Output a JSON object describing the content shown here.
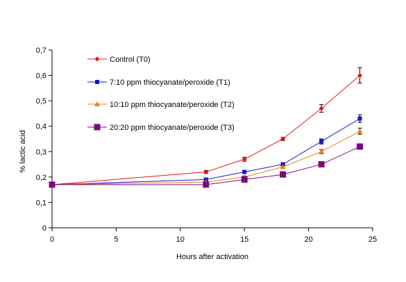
{
  "chart_data": {
    "type": "line",
    "title": "",
    "xlabel": "Hours after activation",
    "ylabel": "% lactic acid",
    "xlim": [
      0,
      25
    ],
    "ylim": [
      0,
      0.7
    ],
    "x_ticks": [
      0,
      5,
      10,
      15,
      20,
      25
    ],
    "x_tick_labels": [
      "0",
      "5",
      "10",
      "15",
      "20",
      "25"
    ],
    "y_ticks": [
      0,
      0.1,
      0.2,
      0.3,
      0.4,
      0.5,
      0.6,
      0.7
    ],
    "y_tick_labels": [
      "0",
      "0,1",
      "0,2",
      "0,3",
      "0,4",
      "0,5",
      "0,6",
      "0,7"
    ],
    "grid": false,
    "legend_position": "top-left (inside plot)",
    "series": [
      {
        "name": "Control (T0)",
        "color": "#e8140c",
        "marker": "diamond",
        "x": [
          0,
          12,
          15,
          18,
          21,
          24
        ],
        "y": [
          0.17,
          0.22,
          0.27,
          0.35,
          0.47,
          0.6
        ],
        "error": [
          0,
          0.006,
          0.008,
          0.006,
          0.015,
          0.03
        ]
      },
      {
        "name": "7:10 ppm thiocyanate/peroxide (T1)",
        "color": "#1414d8",
        "marker": "square",
        "x": [
          0,
          12,
          15,
          18,
          21,
          24
        ],
        "y": [
          0.17,
          0.19,
          0.22,
          0.25,
          0.34,
          0.43
        ],
        "error": [
          0,
          0.004,
          0.005,
          0.006,
          0.01,
          0.015
        ]
      },
      {
        "name": "10:10 ppm thiocyanate/peroxide (T2)",
        "color": "#f07a14",
        "marker": "triangle",
        "x": [
          0,
          12,
          15,
          18,
          21,
          24
        ],
        "y": [
          0.17,
          0.18,
          0.2,
          0.24,
          0.3,
          0.38
        ],
        "error": [
          0,
          0.004,
          0.004,
          0.005,
          0.008,
          0.012
        ]
      },
      {
        "name": "20:20 ppm thiocyanate/peroxide (T3)",
        "color": "#7a0a80",
        "marker": "square-large",
        "x": [
          0,
          12,
          15,
          18,
          21,
          24
        ],
        "y": [
          0.17,
          0.17,
          0.19,
          0.21,
          0.25,
          0.32
        ],
        "error": [
          0,
          0,
          0,
          0,
          0,
          0
        ]
      }
    ]
  }
}
